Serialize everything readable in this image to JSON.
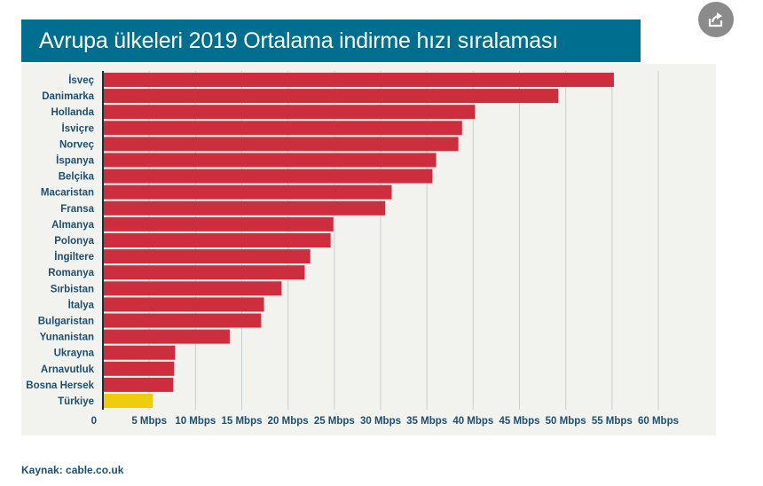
{
  "title": "Avrupa ülkeleri 2019 Ortalama indirme hızı sıralaması",
  "source": "Kaynak: cable.co.uk",
  "share_icon": "share-icon",
  "colors": {
    "title_bg": "#006e8f",
    "bar": "#cc2e3e",
    "highlight": "#f0cc0f",
    "label": "#1d4f73",
    "grid": "#c9cfcf",
    "plot_bg": "#f2f2ee"
  },
  "chart_data": {
    "type": "bar",
    "orientation": "horizontal",
    "title": "Avrupa ülkeleri 2019 Ortalama indirme hızı sıralaması",
    "categories": [
      "İsveç",
      "Danimarka",
      "Hollanda",
      "İsviçre",
      "Norveç",
      "İspanya",
      "Belçika",
      "Macaristan",
      "Fransa",
      "Almanya",
      "Polonya",
      "İngiltere",
      "Romanya",
      "Sırbistan",
      "İtalya",
      "Bulgaristan",
      "Yunanistan",
      "Ukrayna",
      "Arnavutluk",
      "Bosna Hersek",
      "Türkiye"
    ],
    "values": [
      55.2,
      49.2,
      40.2,
      38.8,
      38.4,
      36.0,
      35.6,
      31.2,
      30.5,
      24.9,
      24.6,
      22.4,
      21.8,
      19.3,
      17.4,
      17.1,
      13.7,
      7.8,
      7.7,
      7.6,
      5.4
    ],
    "highlight": "Türkiye",
    "xlim": [
      0,
      60
    ],
    "xticks": [
      "0",
      "5 Mbps",
      "10 Mbps",
      "15 Mbps",
      "20 Mbps",
      "25 Mbps",
      "30 Mbps",
      "35 Mbps",
      "40 Mbps",
      "45 Mbps",
      "50 Mbps",
      "55 Mbps",
      "60 Mbps"
    ],
    "grid": true
  }
}
